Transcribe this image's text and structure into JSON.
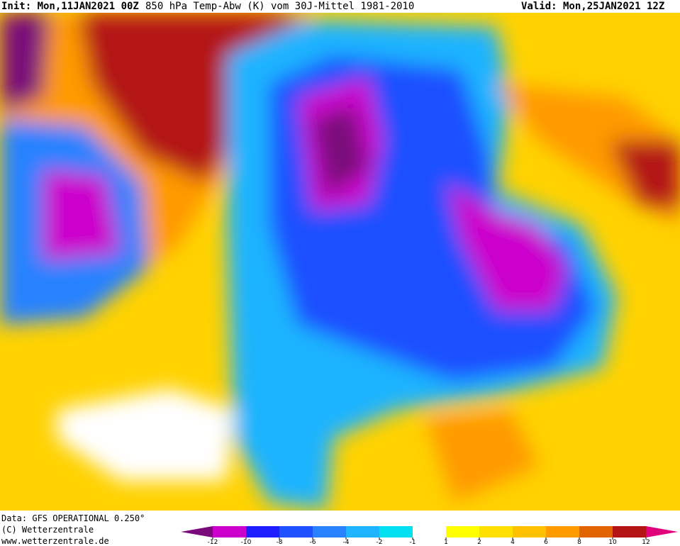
{
  "header": {
    "init": "Init: Mon,11JAN2021 00Z",
    "title": "850 hPa Temp-Abw (K) vom 30J-Mittel 1981-2010",
    "valid": "Valid: Mon,25JAN2021 12Z"
  },
  "footer": {
    "data": "Data: GFS OPERATIONAL 0.250°",
    "copyright": "(C) Wetterzentrale",
    "url": "www.wetterzentrale.de"
  },
  "legend": {
    "ticks": [
      -12,
      -10,
      -8,
      -6,
      -4,
      -2,
      -1,
      1,
      2,
      4,
      6,
      8,
      10,
      12
    ],
    "colors": [
      "#7a0a7a",
      "#cc00cc",
      "#1e1eff",
      "#1e50ff",
      "#2882ff",
      "#1eb4ff",
      "#00e0f0",
      "#ffffff",
      "#ffff00",
      "#ffe000",
      "#ffc000",
      "#ff9a00",
      "#e06400",
      "#b41414",
      "#e0007a"
    ]
  }
}
